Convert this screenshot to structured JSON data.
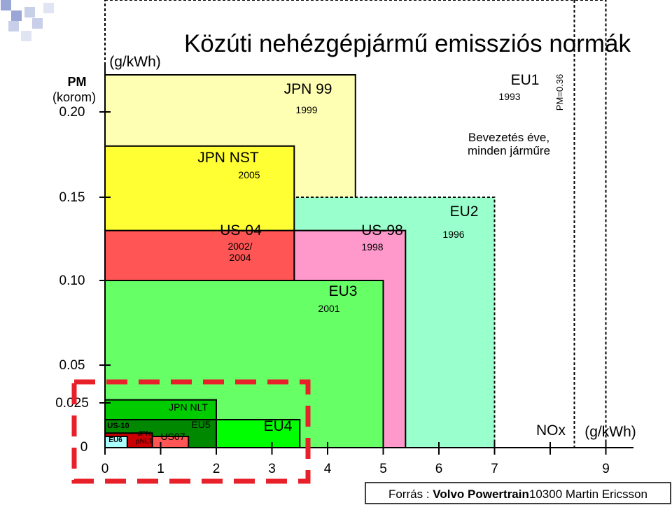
{
  "chart_data": {
    "type": "area",
    "title": "Közúti nehézgépjármű emissziós normák",
    "y_axis": {
      "name_lines": [
        "PM",
        "(korom)"
      ],
      "unit": "(g/kWh)",
      "ticks": [
        {
          "value": 0,
          "label": "0"
        },
        {
          "value": 0.025,
          "label": "0.025"
        },
        {
          "value": 0.05,
          "label": "0.05"
        },
        {
          "value": 0.1,
          "label": "0.10"
        },
        {
          "value": 0.15,
          "label": "0.15"
        },
        {
          "value": 0.2,
          "label": "0.20"
        }
      ]
    },
    "x_axis": {
      "name": "NOx",
      "unit": "(g/kWh)",
      "ticks": [
        {
          "value": 0,
          "label": "0"
        },
        {
          "value": 1,
          "label": "1"
        },
        {
          "value": 2,
          "label": "2"
        },
        {
          "value": 3,
          "label": "3"
        },
        {
          "value": 4,
          "label": "4"
        },
        {
          "value": 5,
          "label": "5"
        },
        {
          "value": 6,
          "label": "6"
        },
        {
          "value": 7,
          "label": "7"
        },
        {
          "value": 8,
          "label": ""
        },
        {
          "value": 9,
          "label": "9"
        }
      ]
    },
    "standards": [
      {
        "name": "EU1",
        "year": "1993",
        "nox": 9.0,
        "pm": 0.36,
        "color": "#ffffff",
        "border": "dashed"
      },
      {
        "name": "JPN 99",
        "year": "1999",
        "nox": 4.5,
        "pm": 0.25,
        "color": "#ffffb3",
        "border": "solid"
      },
      {
        "name": "EU2",
        "year": "1996",
        "nox": 7.0,
        "pm": 0.15,
        "color": "#99ffcc",
        "border": "dashed"
      },
      {
        "name": "JPN NST",
        "year": "2005",
        "nox": 3.4,
        "pm": 0.18,
        "color": "#ffff33",
        "border": "solid"
      },
      {
        "name": "US-98",
        "year": "1998",
        "nox": 5.4,
        "pm": 0.13,
        "color": "#ff99cc",
        "border": "solid"
      },
      {
        "name": "US-04",
        "year": "2002/\n2004",
        "nox": 3.4,
        "pm": 0.13,
        "color": "#ff5555",
        "border": "solid"
      },
      {
        "name": "EU3",
        "year": "2001",
        "nox": 5.0,
        "pm": 0.1,
        "color": "#66ff66",
        "border": "solid"
      },
      {
        "name": "JPN NLT",
        "year": "",
        "nox": 2.0,
        "pm": 0.027,
        "color": "#00cc00",
        "border": "solid"
      },
      {
        "name": "EU4",
        "year": "",
        "nox": 3.5,
        "pm": 0.02,
        "color": "#00ff00",
        "border": "solid"
      },
      {
        "name": "EU5",
        "year": "",
        "nox": 2.0,
        "pm": 0.02,
        "color": "#008800",
        "border": "solid"
      },
      {
        "name": "US07",
        "year": "",
        "nox": 1.5,
        "pm": 0.01,
        "color": "#ff5555",
        "border": "solid"
      },
      {
        "name": "US-10",
        "year": "",
        "nox": 0.3,
        "pm": 0.01,
        "color": "#aa2222",
        "border": "solid"
      },
      {
        "name": "JPN\npNLT",
        "year": "",
        "nox": 0.85,
        "pm": 0.012,
        "color": "#cc0000",
        "border": "solid"
      },
      {
        "name": "EU6",
        "year": "",
        "nox": 0.4,
        "pm": 0.01,
        "color": "#aaffff",
        "border": "solid"
      }
    ],
    "annotations": {
      "intro_note": "Bevezetés éve,\nminden járműre",
      "pm_limit_label": "PM=0.36"
    },
    "source": {
      "prefix": "Forrás : ",
      "bold": "Volvo Powertrain",
      "rest": "10300 Martin Ericsson"
    },
    "colors": {
      "dashed_highlight": "#e8202a",
      "axis": "#000000"
    }
  }
}
